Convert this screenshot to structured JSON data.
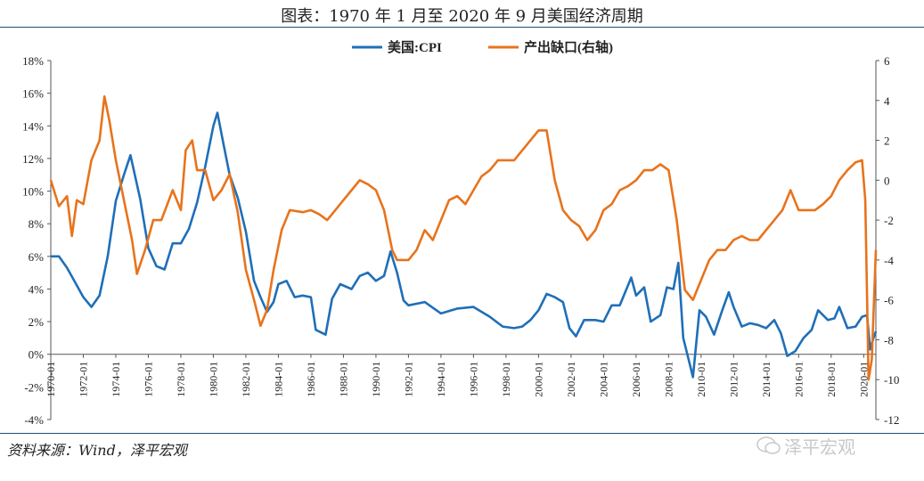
{
  "header": {
    "title": "图表：1970 年 1 月至 2020 年 9 月美国经济周期"
  },
  "footer": {
    "source": "资料来源：Wind，泽平宏观",
    "watermark": "泽平宏观"
  },
  "colors": {
    "cpi": "#1f6fb8",
    "gap": "#e8731c",
    "rule": "#1f4e79"
  },
  "chart_data": {
    "type": "line",
    "legend": [
      "美国:CPI",
      "产出缺口(右轴)"
    ],
    "legend_position": "top-center",
    "grid": false,
    "y_left": {
      "min": -4,
      "max": 18,
      "step": 2,
      "ticks": [
        "-4%",
        "-2%",
        "0%",
        "2%",
        "4%",
        "6%",
        "8%",
        "10%",
        "12%",
        "14%",
        "16%",
        "18%"
      ]
    },
    "y_right": {
      "min": -12,
      "max": 6,
      "step": 2,
      "ticks": [
        "-12",
        "-10",
        "-8",
        "-6",
        "-4",
        "-2",
        "0",
        "2",
        "4",
        "6"
      ]
    },
    "x_ticks": [
      "1970-01",
      "1972-01",
      "1974-01",
      "1976-01",
      "1978-01",
      "1980-01",
      "1982-01",
      "1984-01",
      "1986-01",
      "1988-01",
      "1990-01",
      "1992-01",
      "1994-01",
      "1996-01",
      "1998-01",
      "2000-01",
      "2002-01",
      "2004-01",
      "2006-01",
      "2008-01",
      "2010-01",
      "2012-01",
      "2014-01",
      "2016-01",
      "2018-01",
      "2020-01"
    ],
    "x_range": [
      1970.0,
      2020.75
    ],
    "series": [
      {
        "name": "美国:CPI",
        "axis": "left",
        "x": [
          1970.0,
          1970.5,
          1971.0,
          1971.5,
          1972.0,
          1972.5,
          1973.0,
          1973.5,
          1974.0,
          1974.5,
          1974.9,
          1975.5,
          1976.0,
          1976.5,
          1977.0,
          1977.5,
          1978.0,
          1978.5,
          1979.0,
          1979.5,
          1980.0,
          1980.25,
          1980.6,
          1981.0,
          1981.5,
          1982.0,
          1982.5,
          1982.9,
          1983.3,
          1983.7,
          1984.0,
          1984.5,
          1985.0,
          1985.5,
          1986.0,
          1986.3,
          1986.9,
          1987.3,
          1987.8,
          1988.5,
          1989.0,
          1989.5,
          1990.0,
          1990.5,
          1990.9,
          1991.3,
          1991.7,
          1992.0,
          1993.0,
          1994.0,
          1995.0,
          1996.0,
          1997.0,
          1997.8,
          1998.5,
          1999.0,
          1999.5,
          2000.0,
          2000.5,
          2001.0,
          2001.5,
          2001.9,
          2002.3,
          2002.8,
          2003.5,
          2004.0,
          2004.5,
          2005.0,
          2005.7,
          2006.0,
          2006.5,
          2006.9,
          2007.5,
          2007.9,
          2008.3,
          2008.6,
          2008.9,
          2009.2,
          2009.5,
          2009.9,
          2010.3,
          2010.8,
          2011.3,
          2011.7,
          2012.0,
          2012.5,
          2013.0,
          2013.5,
          2014.0,
          2014.5,
          2014.9,
          2015.3,
          2015.8,
          2016.3,
          2016.8,
          2017.2,
          2017.8,
          2018.2,
          2018.5,
          2019.0,
          2019.5,
          2019.9,
          2020.2,
          2020.4,
          2020.6,
          2020.75
        ],
        "values": [
          6.0,
          6.0,
          5.3,
          4.4,
          3.5,
          2.9,
          3.6,
          6.0,
          9.4,
          11.0,
          12.2,
          9.5,
          6.5,
          5.4,
          5.2,
          6.8,
          6.8,
          7.7,
          9.3,
          11.5,
          14.0,
          14.8,
          13.0,
          11.0,
          9.6,
          7.5,
          4.5,
          3.5,
          2.6,
          3.2,
          4.3,
          4.5,
          3.5,
          3.6,
          3.5,
          1.5,
          1.2,
          3.4,
          4.3,
          4.0,
          4.8,
          5.0,
          4.5,
          4.8,
          6.3,
          5.0,
          3.3,
          3.0,
          3.2,
          2.5,
          2.8,
          2.9,
          2.3,
          1.7,
          1.6,
          1.7,
          2.1,
          2.7,
          3.7,
          3.5,
          3.2,
          1.6,
          1.1,
          2.1,
          2.1,
          2.0,
          3.0,
          3.0,
          4.7,
          3.6,
          4.1,
          2.0,
          2.4,
          4.1,
          4.0,
          5.6,
          1.0,
          -0.2,
          -1.4,
          2.7,
          2.3,
          1.2,
          2.7,
          3.8,
          2.9,
          1.7,
          1.9,
          1.8,
          1.6,
          2.1,
          1.3,
          -0.1,
          0.2,
          1.0,
          1.5,
          2.7,
          2.1,
          2.2,
          2.9,
          1.6,
          1.7,
          2.3,
          2.4,
          0.3,
          1.0,
          1.4
        ]
      },
      {
        "name": "产出缺口(右轴)",
        "axis": "right",
        "x": [
          1970.0,
          1970.5,
          1971.0,
          1971.3,
          1971.6,
          1972.0,
          1972.5,
          1973.0,
          1973.3,
          1973.6,
          1974.0,
          1974.5,
          1975.0,
          1975.3,
          1975.8,
          1976.3,
          1976.8,
          1977.5,
          1978.0,
          1978.3,
          1978.7,
          1979.0,
          1979.5,
          1980.0,
          1980.5,
          1981.0,
          1981.5,
          1982.0,
          1982.5,
          1982.9,
          1983.3,
          1983.7,
          1984.2,
          1984.7,
          1985.5,
          1986.0,
          1986.5,
          1987.0,
          1987.5,
          1988.0,
          1988.5,
          1989.0,
          1989.5,
          1990.0,
          1990.5,
          1991.0,
          1991.3,
          1992.0,
          1992.5,
          1993.0,
          1993.5,
          1994.0,
          1994.5,
          1995.0,
          1995.5,
          1996.0,
          1996.5,
          1997.0,
          1997.5,
          1998.0,
          1998.5,
          1999.0,
          1999.5,
          2000.0,
          2000.5,
          2001.0,
          2001.5,
          2002.0,
          2002.5,
          2003.0,
          2003.5,
          2004.0,
          2004.5,
          2005.0,
          2005.5,
          2006.0,
          2006.5,
          2007.0,
          2007.5,
          2008.0,
          2008.5,
          2009.0,
          2009.5,
          2010.0,
          2010.5,
          2011.0,
          2011.5,
          2012.0,
          2012.5,
          2013.0,
          2013.5,
          2014.0,
          2014.5,
          2015.0,
          2015.5,
          2016.0,
          2016.5,
          2017.0,
          2017.5,
          2018.0,
          2018.5,
          2019.0,
          2019.5,
          2019.9,
          2020.1,
          2020.3,
          2020.5,
          2020.75
        ],
        "values": [
          0.0,
          -1.3,
          -0.8,
          -2.8,
          -1.0,
          -1.2,
          1.0,
          2.0,
          4.2,
          3.0,
          1.0,
          -1.0,
          -3.0,
          -4.7,
          -3.5,
          -2.0,
          -2.0,
          -0.5,
          -1.5,
          1.5,
          2.0,
          0.5,
          0.5,
          -1.0,
          -0.5,
          0.3,
          -1.6,
          -4.5,
          -6.0,
          -7.3,
          -6.5,
          -4.5,
          -2.5,
          -1.5,
          -1.6,
          -1.5,
          -1.7,
          -2.0,
          -1.5,
          -1.0,
          -0.5,
          0.0,
          -0.2,
          -0.5,
          -1.5,
          -3.5,
          -4.0,
          -4.0,
          -3.5,
          -2.5,
          -3.0,
          -2.0,
          -1.0,
          -0.8,
          -1.2,
          -0.5,
          0.2,
          0.5,
          1.0,
          1.0,
          1.0,
          1.5,
          2.0,
          2.5,
          2.5,
          0.0,
          -1.5,
          -2.0,
          -2.3,
          -3.0,
          -2.5,
          -1.5,
          -1.2,
          -0.5,
          -0.3,
          0.0,
          0.5,
          0.5,
          0.8,
          0.5,
          -2.0,
          -5.5,
          -6.0,
          -5.0,
          -4.0,
          -3.5,
          -3.5,
          -3.0,
          -2.8,
          -3.0,
          -3.0,
          -2.5,
          -2.0,
          -1.5,
          -0.5,
          -1.5,
          -1.5,
          -1.5,
          -1.2,
          -0.8,
          0.0,
          0.5,
          0.9,
          1.0,
          -1.0,
          -10.0,
          -9.0,
          -3.5
        ]
      }
    ]
  }
}
